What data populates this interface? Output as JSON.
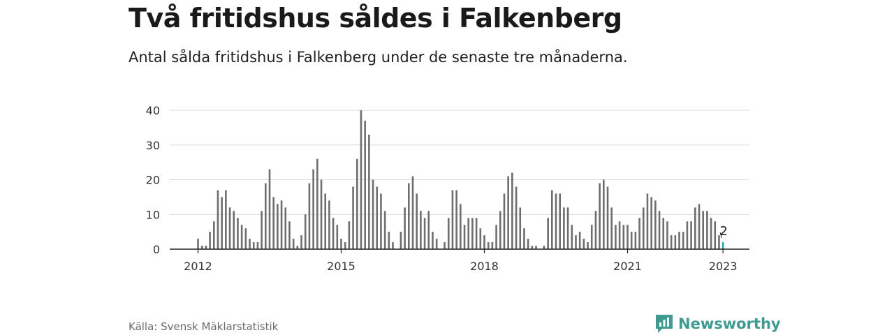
{
  "title": "Två fritidshus såldes i Falkenberg",
  "subtitle": "Antal sålda fritidshus i Falkenberg under de senaste tre månaderna.",
  "source": "Källa: Svensk Mäklarstatistik",
  "brand": {
    "name": "Newsworthy",
    "icon": "newsworthy-logo-icon",
    "color": "#3f9a91"
  },
  "chart_data": {
    "type": "bar",
    "start": "2012-01",
    "values": [
      3,
      1,
      1,
      5,
      8,
      17,
      15,
      17,
      12,
      11,
      9,
      7,
      6,
      3,
      2,
      2,
      11,
      19,
      23,
      15,
      13,
      14,
      12,
      8,
      3,
      1,
      4,
      10,
      19,
      23,
      26,
      20,
      16,
      14,
      9,
      7,
      3,
      2,
      8,
      18,
      26,
      40,
      37,
      33,
      20,
      18,
      16,
      11,
      5,
      2,
      0,
      5,
      12,
      19,
      21,
      16,
      11,
      9,
      11,
      5,
      3,
      0,
      2,
      9,
      17,
      17,
      13,
      7,
      9,
      9,
      9,
      6,
      4,
      2,
      2,
      7,
      11,
      16,
      21,
      22,
      18,
      12,
      6,
      3,
      1,
      1,
      0,
      1,
      9,
      17,
      16,
      16,
      12,
      12,
      7,
      4,
      5,
      3,
      2,
      7,
      11,
      19,
      20,
      18,
      12,
      7,
      8,
      7,
      7,
      5,
      5,
      9,
      12,
      16,
      15,
      14,
      11,
      9,
      8,
      4,
      4,
      5,
      5,
      8,
      8,
      12,
      13,
      11,
      11,
      9,
      8,
      4,
      2
    ],
    "highlight": {
      "value": 2,
      "label": "2",
      "color": "#2aa8b8"
    },
    "bar_color": "#6e6e70",
    "x_ticks": [
      "2012",
      "2015",
      "2018",
      "2021",
      "2023"
    ],
    "y_ticks": [
      "0",
      "10",
      "20",
      "30",
      "40"
    ],
    "ylim": [
      0,
      40
    ],
    "grid": true
  }
}
